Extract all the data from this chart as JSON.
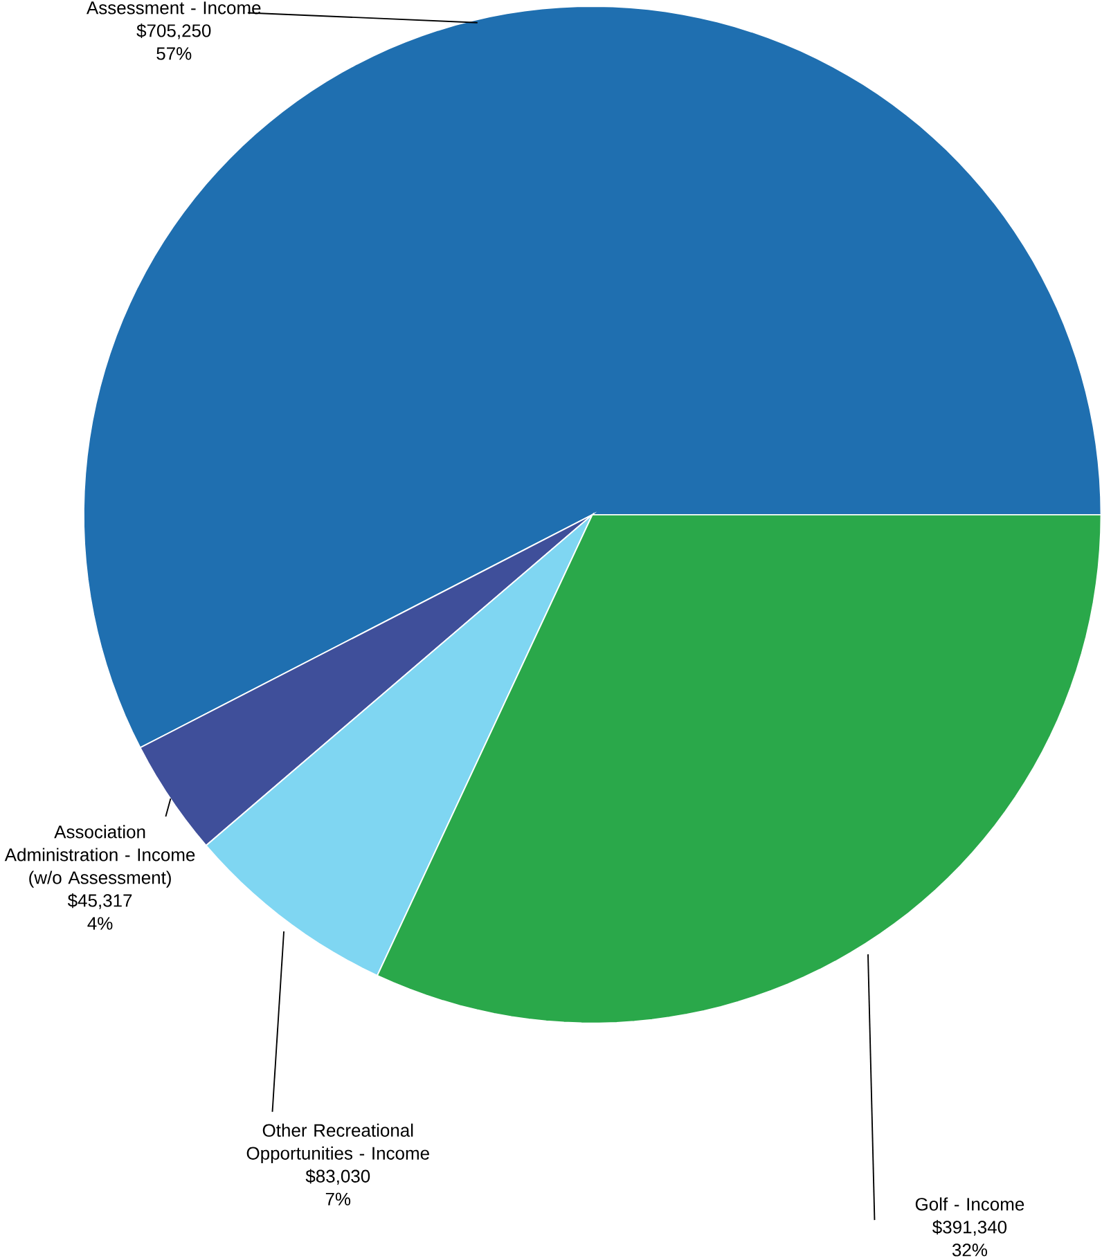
{
  "chart_data": {
    "type": "pie",
    "categories": [
      "Assessment - Income",
      "Association Administration - Income (w/o Assessment)",
      "Other Recreational Opportunities - Income",
      "Golf - Income"
    ],
    "values": [
      705250,
      45317,
      83030,
      391340
    ],
    "value_labels": [
      "$705,250",
      "$45,317",
      "$83,030",
      "$391,340"
    ],
    "colors": [
      "#1f6fb0",
      "#3f4f9a",
      "#7fd6f2",
      "#2aa84a"
    ],
    "annotations": [
      "57%",
      "4%",
      "7%",
      "32%"
    ]
  }
}
